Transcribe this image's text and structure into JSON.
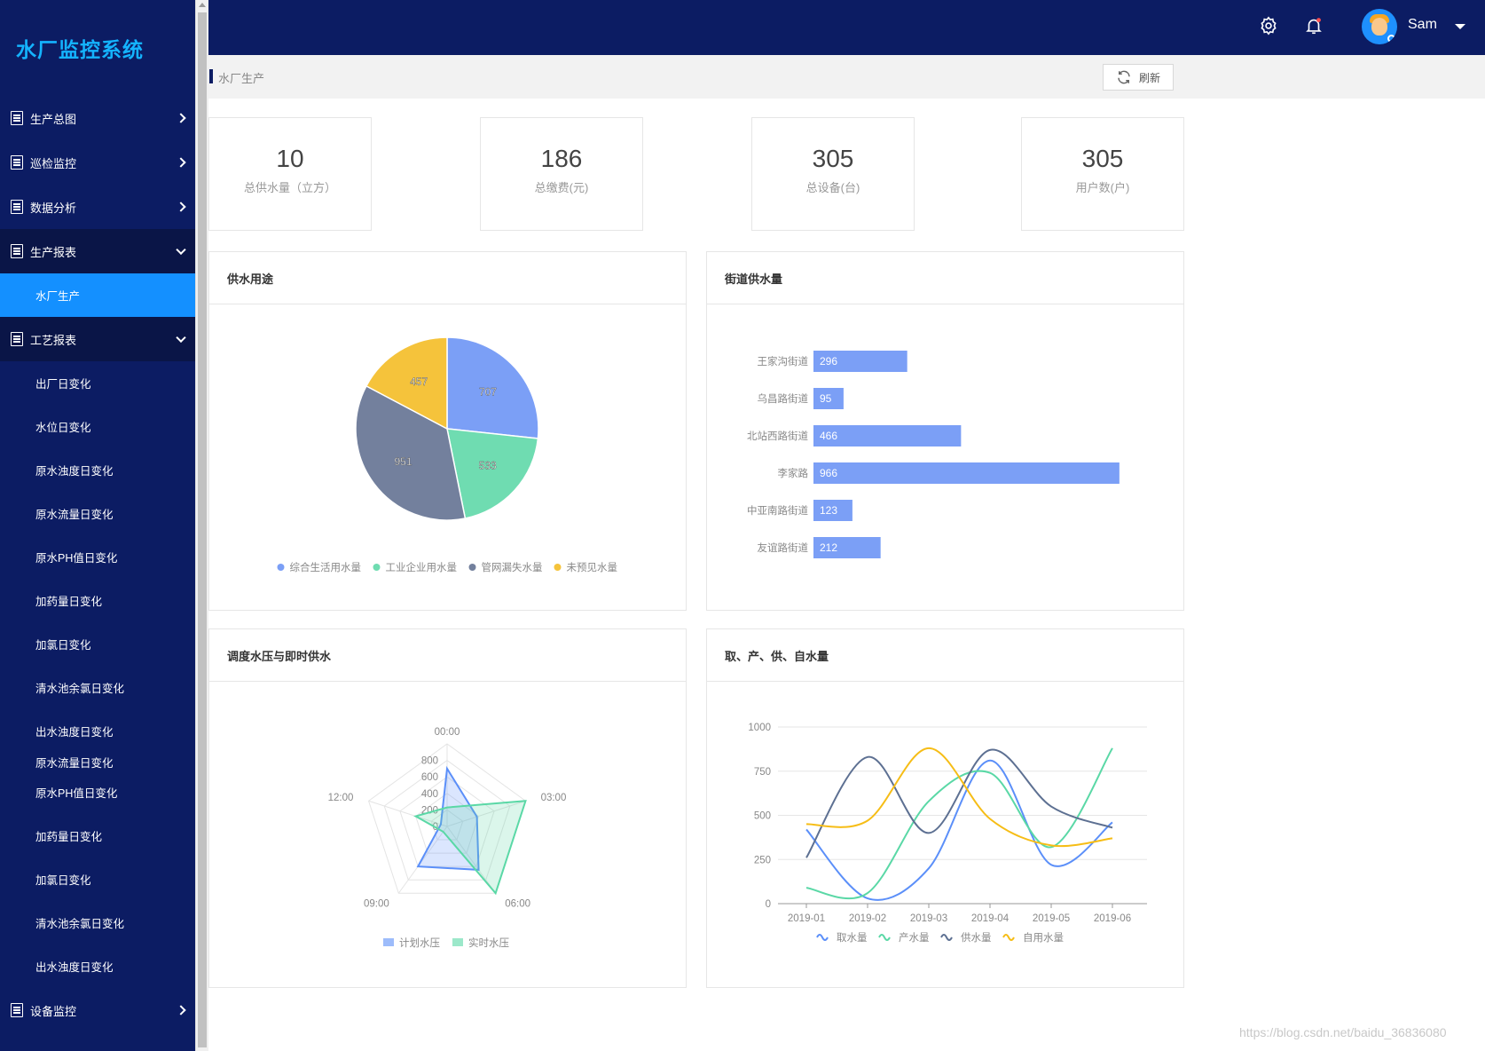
{
  "app": {
    "title": "水厂监控系统"
  },
  "sidebar": {
    "groups": [
      {
        "label": "生产总图",
        "open": false
      },
      {
        "label": "巡检监控",
        "open": false
      },
      {
        "label": "数据分析",
        "open": false
      },
      {
        "label": "生产报表",
        "open": true,
        "children": [
          "水厂生产"
        ]
      },
      {
        "label": "工艺报表",
        "open": true,
        "children": [
          "出厂日变化",
          "水位日变化",
          "原水浊度日变化",
          "原水流量日变化",
          "原水PH值日变化",
          "加药量日变化",
          "加氯日变化",
          "清水池余氯日变化",
          "出水浊度日变化",
          "原水流量日变化",
          "原水PH值日变化",
          "加药量日变化",
          "加氯日变化",
          "清水池余氯日变化",
          "出水浊度日变化"
        ]
      },
      {
        "label": "设备监控",
        "open": false
      }
    ],
    "active_item": "水厂生产"
  },
  "header": {
    "user": "Sam",
    "icons": [
      "gear-icon",
      "bell-icon"
    ]
  },
  "breadcrumb": {
    "current": "水厂生产",
    "refresh_label": "刷新"
  },
  "stats": [
    {
      "value": "10",
      "label": "总供水量（立方）"
    },
    {
      "value": "186",
      "label": "总缴费(元)"
    },
    {
      "value": "305",
      "label": "总设备(台)"
    },
    {
      "value": "305",
      "label": "用户数(户)"
    }
  ],
  "panels": {
    "usage": {
      "title": "供水用途"
    },
    "street": {
      "title": "街道供水量"
    },
    "pressure": {
      "title": "调度水压与即时供水"
    },
    "volumes": {
      "title": "取、产、供、自水量"
    }
  },
  "chart_data": [
    {
      "type": "pie",
      "title": "供水用途",
      "slices": [
        {
          "name": "综合生活用水量",
          "value": 707,
          "color": "#7b9ff6"
        },
        {
          "name": "工业企业用水量",
          "value": 533,
          "color": "#6fdcb1"
        },
        {
          "name": "管网漏失水量",
          "value": 951,
          "color": "#73809d"
        },
        {
          "name": "未预见水量",
          "value": 457,
          "color": "#f5c33b"
        }
      ],
      "legend": "bottom"
    },
    {
      "type": "bar",
      "orientation": "horizontal",
      "title": "街道供水量",
      "categories": [
        "王家沟街道",
        "乌昌路街道",
        "北站西路街道",
        "李家路",
        "中亚南路街道",
        "友谊路街道"
      ],
      "values": [
        296,
        95,
        466,
        966,
        123,
        212
      ],
      "color": "#7b9ff6"
    },
    {
      "type": "radar",
      "title": "调度水压与即时供水",
      "indicators": [
        "00:00",
        "03:00",
        "06:00",
        "09:00",
        "12:00"
      ],
      "ticks": [
        "0",
        "200",
        "400",
        "600",
        "800"
      ],
      "max": 1000,
      "series": [
        {
          "name": "计划水压",
          "values": [
            700,
            380,
            650,
            600,
            80
          ],
          "color": "#5b8ff9"
        },
        {
          "name": "实时水压",
          "values": [
            230,
            1000,
            1000,
            80,
            400
          ],
          "color": "#5ad8a6"
        }
      ],
      "legend": "bottom"
    },
    {
      "type": "line",
      "title": "取、产、供、自水量",
      "x": [
        "2019-01",
        "2019-02",
        "2019-03",
        "2019-04",
        "2019-05",
        "2019-06"
      ],
      "ylim": [
        0,
        1000
      ],
      "yticks": [
        0,
        250,
        500,
        750,
        1000
      ],
      "grid": true,
      "smooth": true,
      "series": [
        {
          "name": "取水量",
          "values": [
            420,
            30,
            200,
            810,
            220,
            460
          ],
          "color": "#5b8ff9"
        },
        {
          "name": "产水量",
          "values": [
            90,
            60,
            580,
            740,
            320,
            880
          ],
          "color": "#5ad8a6"
        },
        {
          "name": "供水量",
          "values": [
            260,
            830,
            400,
            870,
            550,
            430
          ],
          "color": "#5d7092"
        },
        {
          "name": "自用水量",
          "values": [
            450,
            470,
            880,
            480,
            330,
            370
          ],
          "color": "#f6bd16"
        }
      ],
      "legend": "bottom"
    }
  ],
  "watermark": "https://blog.csdn.net/baidu_36836080"
}
